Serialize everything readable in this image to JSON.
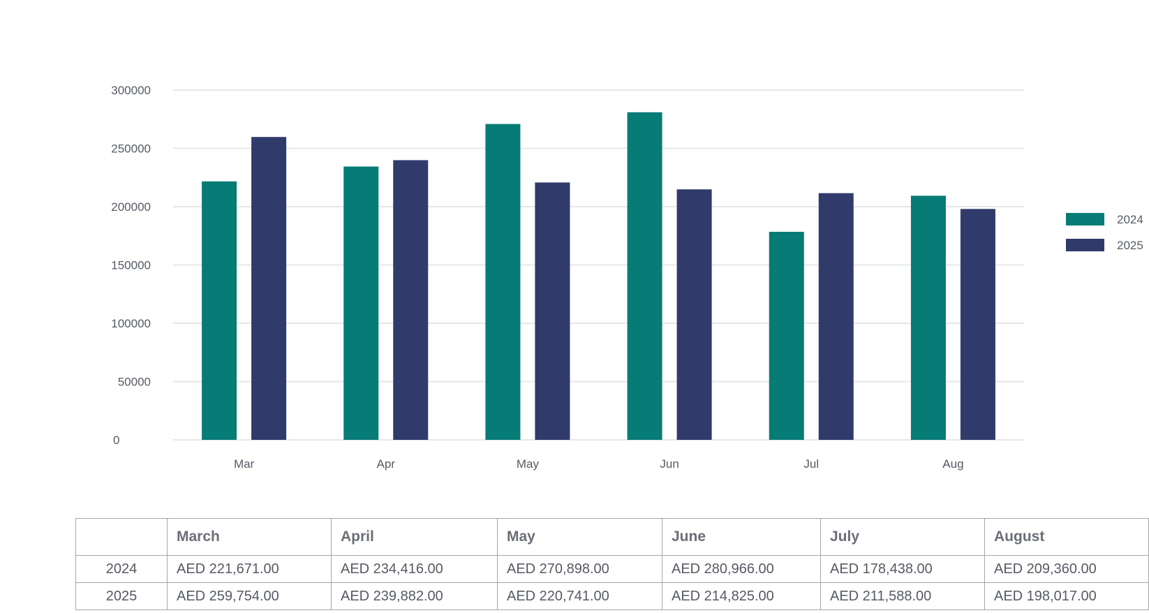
{
  "chart_data": {
    "type": "bar",
    "categories": [
      "Mar",
      "Apr",
      "May",
      "Jun",
      "Jul",
      "Aug"
    ],
    "series": [
      {
        "name": "2024",
        "values": [
          221671,
          234416,
          270898,
          280966,
          178438,
          209360
        ]
      },
      {
        "name": "2025",
        "values": [
          259754,
          239882,
          220741,
          214825,
          211588,
          198017
        ]
      }
    ],
    "title": "",
    "xlabel": "",
    "ylabel": "",
    "ylim": [
      0,
      300000
    ],
    "yticks": [
      0,
      50000,
      100000,
      150000,
      200000,
      250000,
      300000
    ],
    "grid": true,
    "legend_position": "right",
    "colors": {
      "2024": "#077b75",
      "2025": "#303a6b",
      "grid": "#e6e7e9",
      "text": "#555a63"
    }
  },
  "table": {
    "headers": [
      "",
      "March",
      "April",
      "May",
      "June",
      "July",
      "August"
    ],
    "rows": [
      {
        "year": "2024",
        "cells": [
          "AED 221,671.00",
          "AED 234,416.00",
          "AED 270,898.00",
          "AED 280,966.00",
          "AED 178,438.00",
          "AED 209,360.00"
        ]
      },
      {
        "year": "2025",
        "cells": [
          "AED 259,754.00",
          "AED 239,882.00",
          "AED 220,741.00",
          "AED 214,825.00",
          "AED 211,588.00",
          "AED 198,017.00"
        ]
      }
    ]
  }
}
